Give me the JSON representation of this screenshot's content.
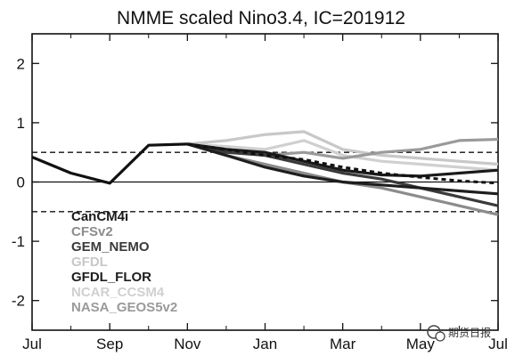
{
  "chart_data": {
    "type": "line",
    "title": "NMME scaled Nino3.4, IC=201912",
    "xlabel": "",
    "ylabel": "",
    "x_tick_labels": [
      "Jul",
      "Sep",
      "Nov",
      "Jan",
      "Mar",
      "May",
      "Jul"
    ],
    "y_tick_labels": [
      "2",
      "1",
      "0",
      "-1",
      "-2"
    ],
    "y_ticks": [
      2,
      1,
      0,
      -1,
      -2
    ],
    "ylim": [
      -2.5,
      2.5
    ],
    "reference_lines": [
      {
        "y": 0.5,
        "style": "dashed"
      },
      {
        "y": 0,
        "style": "solid"
      },
      {
        "y": -0.5,
        "style": "dashed"
      }
    ],
    "observed": {
      "color": "#111111",
      "x": [
        0,
        1,
        2,
        3,
        4
      ],
      "values": [
        0.42,
        0.15,
        -0.02,
        0.62,
        0.64
      ]
    },
    "series": [
      {
        "name": "CanCM4i",
        "color": "#1a1a1a",
        "x": [
          4,
          5,
          6,
          7,
          8,
          9,
          10,
          11,
          12
        ],
        "values": [
          0.64,
          0.55,
          0.5,
          0.35,
          0.2,
          0.12,
          0.1,
          0.15,
          0.2
        ]
      },
      {
        "name": "CFSv2",
        "color": "#8c8c8c",
        "x": [
          4,
          5,
          6,
          7,
          8,
          9,
          10,
          11,
          12
        ],
        "values": [
          0.64,
          0.45,
          0.3,
          0.15,
          0.0,
          -0.1,
          -0.25,
          -0.4,
          -0.55
        ]
      },
      {
        "name": "GEM_NEMO",
        "color": "#3a3a3a",
        "x": [
          4,
          5,
          6,
          7,
          8,
          9,
          10,
          11,
          12
        ],
        "values": [
          0.64,
          0.5,
          0.45,
          0.3,
          0.15,
          0.05,
          -0.1,
          -0.25,
          -0.4
        ]
      },
      {
        "name": "GFDL",
        "color": "#c8c8c8",
        "x": [
          4,
          5,
          6,
          7,
          8,
          9,
          10,
          11,
          12
        ],
        "values": [
          0.64,
          0.7,
          0.8,
          0.85,
          0.55,
          0.45,
          0.4,
          0.35,
          0.3
        ]
      },
      {
        "name": "GFDL_FLOR",
        "color": "#1e1e1e",
        "x": [
          4,
          5,
          6,
          7,
          8,
          9,
          10,
          11,
          12
        ],
        "values": [
          0.64,
          0.45,
          0.25,
          0.1,
          0.0,
          -0.05,
          -0.1,
          -0.15,
          -0.2
        ]
      },
      {
        "name": "NCAR_CCSM4",
        "color": "#d0d0d0",
        "x": [
          4,
          5,
          6,
          7,
          8,
          9,
          10,
          11,
          12
        ],
        "values": [
          0.64,
          0.6,
          0.55,
          0.7,
          0.45,
          0.35,
          0.3,
          0.25,
          0.2
        ]
      },
      {
        "name": "NASA_GEOS5v2",
        "color": "#9a9a9a",
        "x": [
          4,
          5,
          6,
          7,
          8,
          9,
          10,
          11,
          12
        ],
        "values": [
          0.64,
          0.55,
          0.45,
          0.5,
          0.4,
          0.5,
          0.55,
          0.7,
          0.72
        ]
      }
    ],
    "ensemble_mean": {
      "color": "#111111",
      "style": "dashed",
      "x": [
        4,
        5,
        6,
        7,
        8,
        9,
        10,
        11,
        12
      ],
      "values": [
        0.64,
        0.55,
        0.45,
        0.38,
        0.25,
        0.15,
        0.08,
        0.02,
        -0.02
      ]
    },
    "legend": {
      "location": "lower-left"
    }
  },
  "watermark": "期货日报"
}
